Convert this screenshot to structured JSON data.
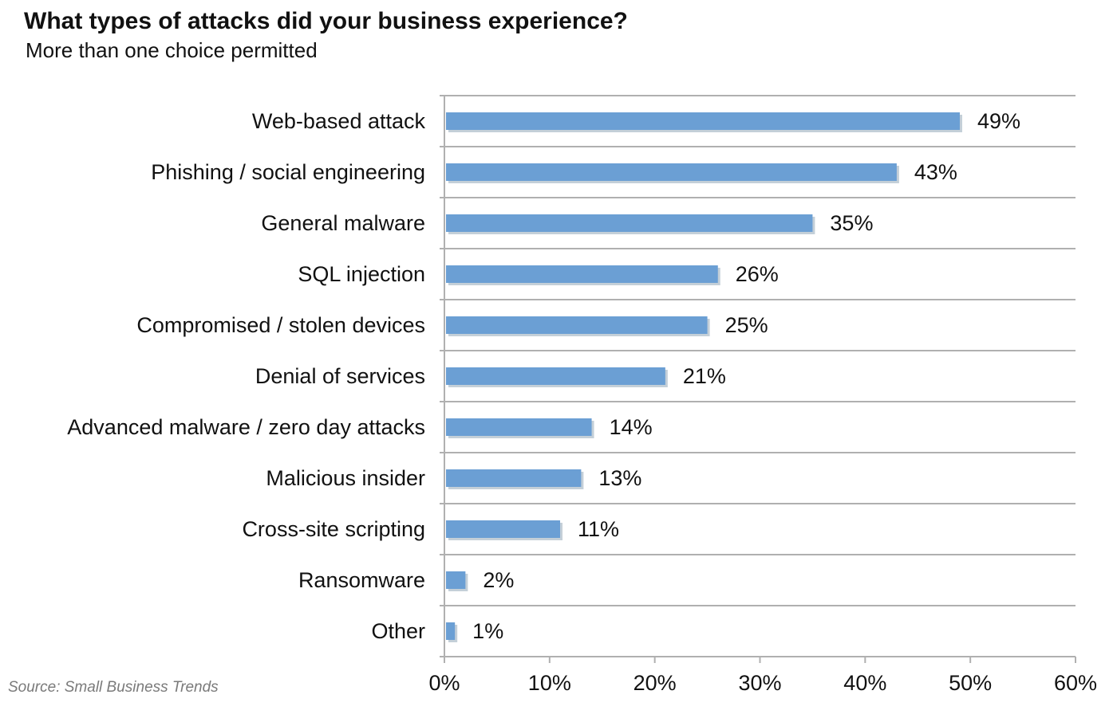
{
  "chart_data": {
    "type": "bar",
    "orientation": "horizontal",
    "title": "What types of attacks did your business experience?",
    "subtitle": "More than one choice permitted",
    "source": "Source: Small Business Trends",
    "categories": [
      "Web-based attack",
      "Phishing / social engineering",
      "General malware",
      "SQL injection",
      "Compromised / stolen devices",
      "Denial of services",
      "Advanced malware / zero day attacks",
      "Malicious insider",
      "Cross-site scripting",
      "Ransomware",
      "Other"
    ],
    "values": [
      49,
      43,
      35,
      26,
      25,
      21,
      14,
      13,
      11,
      2,
      1
    ],
    "value_labels": [
      "49%",
      "43%",
      "35%",
      "26%",
      "25%",
      "21%",
      "14%",
      "13%",
      "11%",
      "2%",
      "1%"
    ],
    "xlim": [
      0,
      60
    ],
    "xticks": [
      0,
      10,
      20,
      30,
      40,
      50,
      60
    ],
    "xtick_labels": [
      "0%",
      "10%",
      "20%",
      "30%",
      "40%",
      "50%",
      "60%"
    ],
    "grid": "horizontal separators between categories",
    "bar_color": "#6b9fd4",
    "bar_shadow_color": "#c4cfd8",
    "axis_color": "#b0b0b0"
  }
}
